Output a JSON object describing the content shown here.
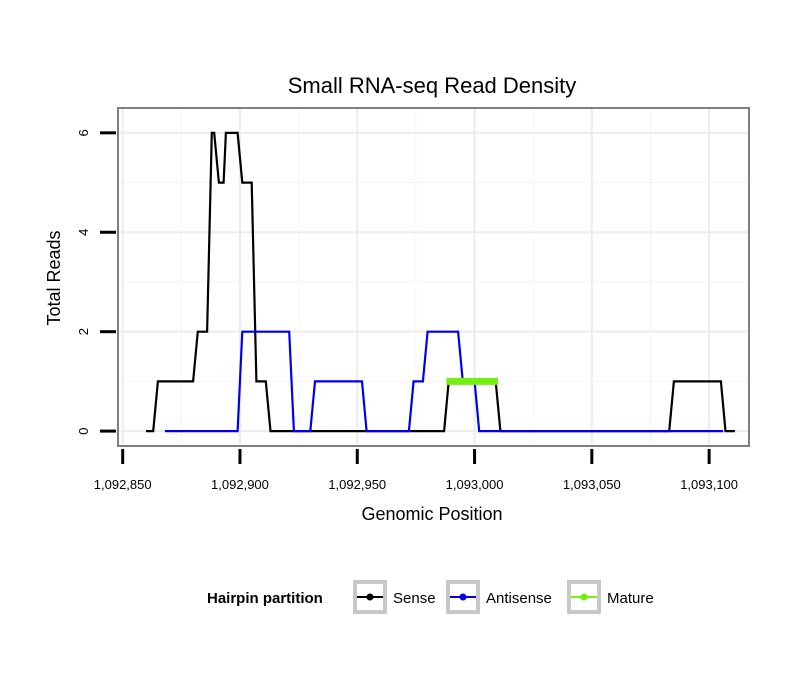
{
  "chart_data": {
    "type": "line",
    "title": "Small RNA-seq Read Density",
    "xlabel": "Genomic Position",
    "ylabel": "Total Reads",
    "xlim": [
      1092848,
      1093117
    ],
    "ylim": [
      -0.3,
      6.5
    ],
    "xticks": [
      1092850,
      1092900,
      1092950,
      1093000,
      1093050,
      1093100
    ],
    "xtick_labels": [
      "1,092,850",
      "1,092,900",
      "1,092,950",
      "1,093,000",
      "1,093,050",
      "1,093,100"
    ],
    "yticks": [
      0,
      2,
      4,
      6
    ],
    "ytick_labels": [
      "0",
      "2",
      "4",
      "6"
    ],
    "grid": true,
    "legend": {
      "title": "Hairpin partition",
      "position": "bottom"
    },
    "series": [
      {
        "name": "Sense",
        "color": "#000000",
        "x": [
          1092860,
          1092863,
          1092865,
          1092880,
          1092882,
          1092886,
          1092888,
          1092889,
          1092891,
          1092893,
          1092894,
          1092899,
          1092901,
          1092905,
          1092907,
          1092911,
          1092913,
          1092987,
          1092989,
          1093009,
          1093011,
          1093083,
          1093085,
          1093105,
          1093107,
          1093111
        ],
        "y": [
          0,
          0,
          1,
          1,
          2,
          2,
          6,
          6,
          5,
          5,
          6,
          6,
          5,
          5,
          1,
          1,
          0,
          0,
          1,
          1,
          0,
          0,
          1,
          1,
          0,
          0
        ]
      },
      {
        "name": "Antisense",
        "color": "#0000ee",
        "x": [
          1092868,
          1092899,
          1092901,
          1092921,
          1092923,
          1092930,
          1092932,
          1092952,
          1092954,
          1092972,
          1092974,
          1092978,
          1092980,
          1092993,
          1092995,
          1093000,
          1093002,
          1093106
        ],
        "y": [
          0,
          0,
          2,
          2,
          0,
          0,
          1,
          1,
          0,
          0,
          1,
          1,
          2,
          2,
          1,
          1,
          0,
          0
        ]
      },
      {
        "name": "Mature",
        "color": "#77ee11",
        "x": [
          1092988,
          1093010
        ],
        "y": [
          1,
          1
        ]
      }
    ]
  }
}
